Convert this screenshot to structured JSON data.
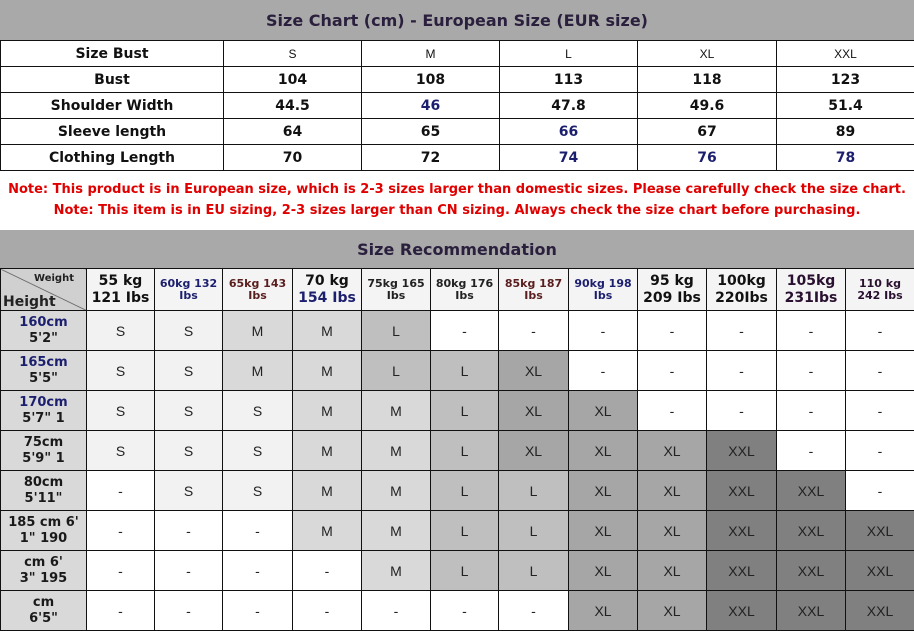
{
  "title": "Size Chart (cm) - European Size (EUR size)",
  "size_table": {
    "header_label": "Size Bust",
    "sizes": [
      "S",
      "M",
      "L",
      "XL",
      "XXL"
    ],
    "rows": [
      {
        "label": "Bust",
        "values": [
          "104",
          "108",
          "113",
          "118",
          "123"
        ]
      },
      {
        "label": "Shoulder Width",
        "values": [
          "44.5",
          "46",
          "47.8",
          "49.6",
          "51.4"
        ]
      },
      {
        "label": "Sleeve length",
        "values": [
          "64",
          "65",
          "66",
          "67",
          "89"
        ]
      },
      {
        "label": "Clothing Length",
        "values": [
          "70",
          "72",
          "74",
          "76",
          "78"
        ]
      }
    ]
  },
  "notes": [
    "Note: This product is in European size, which is 2-3 sizes larger than domestic sizes. Please carefully check the size chart.",
    "Note: This item is in EU sizing, 2-3 sizes larger than CN sizing. Always check the size chart before purchasing."
  ],
  "recommendation": {
    "title": "Size Recommendation",
    "corner_weight": "Weight",
    "corner_height": "Height",
    "weights": [
      {
        "kg": "55 kg",
        "lbs": "121 Ibs",
        "big": true
      },
      {
        "kg": "60kg 132",
        "lbs": "Ibs"
      },
      {
        "kg": "65kg 143",
        "lbs": "Ibs"
      },
      {
        "kg": "70 kg",
        "lbs": "154 Ibs",
        "big": true
      },
      {
        "kg": "75kg 165",
        "lbs": "Ibs"
      },
      {
        "kg": "80kg 176",
        "lbs": "Ibs"
      },
      {
        "kg": "85kg 187",
        "lbs": "Ibs"
      },
      {
        "kg": "90kg 198",
        "lbs": "Ibs"
      },
      {
        "kg": "95 kg",
        "lbs": "209 Ibs",
        "big": true
      },
      {
        "kg": "100kg",
        "lbs": "220Ibs",
        "big": true
      },
      {
        "kg": "105kg",
        "lbs": "231Ibs",
        "big": true
      },
      {
        "kg": "110 kg",
        "lbs": "242 Ibs"
      }
    ],
    "rows": [
      {
        "h1": "160cm",
        "h2": "5'2\"",
        "cells": [
          "S",
          "S",
          "M",
          "M",
          "L",
          "-",
          "-",
          "-",
          "-",
          "-",
          "-",
          "-"
        ]
      },
      {
        "h1": "165cm",
        "h2": "5'5\"",
        "cells": [
          "S",
          "S",
          "M",
          "M",
          "L",
          "L",
          "XL",
          "-",
          "-",
          "-",
          "-",
          "-"
        ]
      },
      {
        "h1": "170cm",
        "h2": "5'7\" 1",
        "cells": [
          "S",
          "S",
          "S",
          "M",
          "M",
          "L",
          "XL",
          "XL",
          "-",
          "-",
          "-",
          "-"
        ]
      },
      {
        "h1": "75cm",
        "h2": "5'9\" 1",
        "cells": [
          "S",
          "S",
          "S",
          "M",
          "M",
          "L",
          "XL",
          "XL",
          "XL",
          "XXL",
          "-",
          "-"
        ]
      },
      {
        "h1": "80cm",
        "h2": "5'11\"",
        "cells": [
          "-",
          "S",
          "S",
          "M",
          "M",
          "L",
          "L",
          "XL",
          "XL",
          "XXL",
          "XXL",
          "-"
        ]
      },
      {
        "h1": "185 cm 6'",
        "h2": "1\" 190",
        "cells": [
          "-",
          "-",
          "-",
          "M",
          "M",
          "L",
          "L",
          "XL",
          "XL",
          "XXL",
          "XXL",
          "XXL"
        ]
      },
      {
        "h1": "cm 6'",
        "h2": "3\" 195",
        "cells": [
          "-",
          "-",
          "-",
          "-",
          "M",
          "L",
          "L",
          "XL",
          "XL",
          "XXL",
          "XXL",
          "XXL"
        ]
      },
      {
        "h1": "cm",
        "h2": "6'5\"",
        "cells": [
          "-",
          "-",
          "-",
          "-",
          "-",
          "-",
          "-",
          "XL",
          "XL",
          "XXL",
          "XXL",
          "XXL"
        ]
      }
    ]
  },
  "colors": {
    "header_bar": "#a9a9a9",
    "note": "#e00000",
    "S": "#f2f2f2",
    "M": "#d9d9d9",
    "L": "#bfbfbf",
    "XL": "#a6a6a6",
    "XXL": "#808080",
    "empty": "#ffffff"
  }
}
